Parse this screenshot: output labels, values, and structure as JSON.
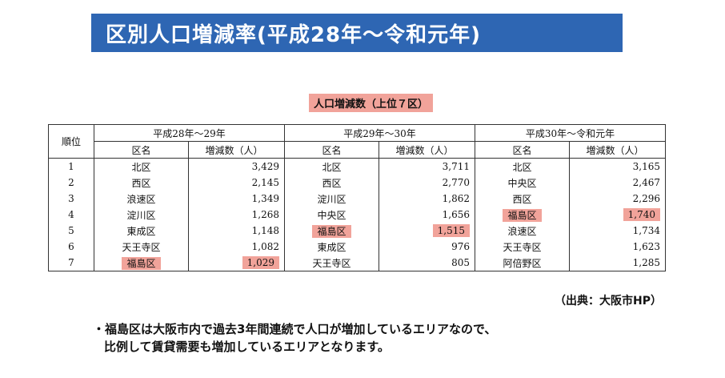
{
  "title": "区別人口増減率(平成28年～令和元年)",
  "table_caption": "人口増減数（上位７区）",
  "table": {
    "rank_header": "順位",
    "periods": [
      {
        "label": "平成28年～29年",
        "ward_header": "区名",
        "value_header": "増減数（人）"
      },
      {
        "label": "平成29年～30年",
        "ward_header": "区名",
        "value_header": "増減数（人）"
      },
      {
        "label": "平成30年～令和元年",
        "ward_header": "区名",
        "value_header": "増減数（人）"
      }
    ],
    "rows": [
      {
        "rank": "1",
        "c1_ward": "北区",
        "c1_val": "3,429",
        "c2_ward": "北区",
        "c2_val": "3,711",
        "c3_ward": "北区",
        "c3_val": "3,165"
      },
      {
        "rank": "2",
        "c1_ward": "西区",
        "c1_val": "2,145",
        "c2_ward": "西区",
        "c2_val": "2,770",
        "c3_ward": "中央区",
        "c3_val": "2,467"
      },
      {
        "rank": "3",
        "c1_ward": "浪速区",
        "c1_val": "1,349",
        "c2_ward": "淀川区",
        "c2_val": "1,862",
        "c3_ward": "西区",
        "c3_val": "2,296"
      },
      {
        "rank": "4",
        "c1_ward": "淀川区",
        "c1_val": "1,268",
        "c2_ward": "中央区",
        "c2_val": "1,656",
        "c3_ward": "福島区",
        "c3_val": "1,740"
      },
      {
        "rank": "5",
        "c1_ward": "東成区",
        "c1_val": "1,148",
        "c2_ward": "福島区",
        "c2_val": "1,515",
        "c3_ward": "浪速区",
        "c3_val": "1,734"
      },
      {
        "rank": "6",
        "c1_ward": "天王寺区",
        "c1_val": "1,082",
        "c2_ward": "東成区",
        "c2_val": "976",
        "c3_ward": "天王寺区",
        "c3_val": "1,623"
      },
      {
        "rank": "7",
        "c1_ward": "福島区",
        "c1_val": "1,029",
        "c2_ward": "天王寺区",
        "c2_val": "805",
        "c3_ward": "阿倍野区",
        "c3_val": "1,285"
      }
    ],
    "highlight_color": "#f1a39a"
  },
  "source": "（出典：大阪市HP）",
  "note_line1": "・福島区は大阪市内で過去3年間連続で人口が増加しているエリアなので、",
  "note_line2": "比例して賃貸需要も増加しているエリアとなります。",
  "colors": {
    "banner": "#2e66b3",
    "banner_text": "#ffffff"
  }
}
